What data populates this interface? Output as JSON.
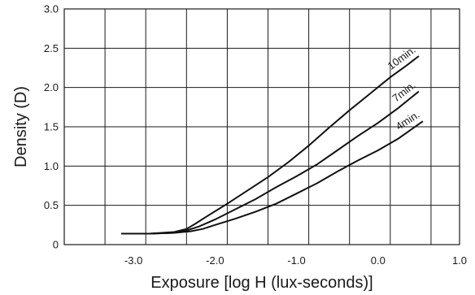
{
  "chart_data": {
    "type": "line",
    "xlabel": "Exposure [log H (lux-seconds)]",
    "ylabel": "Density (D)",
    "xlim": [
      -3.85,
      1.0
    ],
    "ylim": [
      0,
      3.0
    ],
    "x_ticks": [
      -3.0,
      -2.0,
      -1.0,
      0.0,
      1.0
    ],
    "x_tick_labels": [
      "-3.0",
      "-2.0",
      "-1.0",
      "0.0",
      "1.0"
    ],
    "x_grid": [
      -3.35,
      -2.85,
      -2.35,
      -1.85,
      -1.35,
      -0.85,
      -0.35,
      0.15,
      0.65
    ],
    "y_ticks": [
      0,
      0.5,
      1.0,
      1.5,
      2.0,
      2.5,
      3.0
    ],
    "y_tick_labels": [
      "0",
      "0.5",
      "1.0",
      "1.5",
      "2.0",
      "2.5",
      "3.0"
    ],
    "grid": true,
    "series": [
      {
        "name": "10min.",
        "x": [
          -3.15,
          -2.8,
          -2.5,
          -2.35,
          -2.25,
          -2.1,
          -1.85,
          -1.6,
          -1.35,
          -1.1,
          -0.85,
          -0.6,
          -0.35,
          -0.1,
          0.15,
          0.35,
          0.5
        ],
        "y": [
          0.14,
          0.14,
          0.16,
          0.2,
          0.26,
          0.36,
          0.52,
          0.69,
          0.86,
          1.05,
          1.26,
          1.49,
          1.71,
          1.92,
          2.13,
          2.28,
          2.4
        ]
      },
      {
        "name": "7min.",
        "x": [
          -3.15,
          -2.8,
          -2.5,
          -2.35,
          -2.2,
          -2.0,
          -1.75,
          -1.5,
          -1.25,
          -1.0,
          -0.75,
          -0.5,
          -0.25,
          0.0,
          0.25,
          0.5
        ],
        "y": [
          0.14,
          0.14,
          0.15,
          0.18,
          0.23,
          0.32,
          0.45,
          0.58,
          0.73,
          0.87,
          1.02,
          1.2,
          1.38,
          1.55,
          1.74,
          1.95
        ]
      },
      {
        "name": "4min.",
        "x": [
          -3.15,
          -2.8,
          -2.5,
          -2.3,
          -2.15,
          -2.0,
          -1.75,
          -1.5,
          -1.25,
          -1.0,
          -0.75,
          -0.5,
          -0.25,
          0.0,
          0.25,
          0.55
        ],
        "y": [
          0.14,
          0.14,
          0.15,
          0.17,
          0.2,
          0.25,
          0.33,
          0.42,
          0.52,
          0.65,
          0.78,
          0.93,
          1.07,
          1.2,
          1.35,
          1.57
        ]
      }
    ],
    "curve_labels": [
      "10min.",
      "7min.",
      "4min."
    ]
  }
}
